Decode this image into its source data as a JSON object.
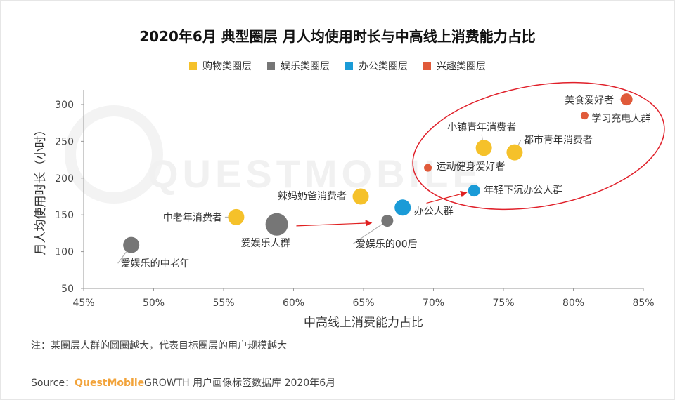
{
  "title": "2020年6月 典型圈层 月人均使用时长与中高线上消费能力占比",
  "legend": [
    {
      "label": "购物类圈层",
      "color": "#f5c12a"
    },
    {
      "label": "娱乐类圈层",
      "color": "#767676"
    },
    {
      "label": "办公类圈层",
      "color": "#1a9bd7"
    },
    {
      "label": "兴趣类圈层",
      "color": "#e05a3a"
    }
  ],
  "watermark": "QUESTMOBILE",
  "chart_data": {
    "type": "scatter",
    "title": "2020年6月 典型圈层 月人均使用时长与中高线上消费能力占比",
    "xlabel": "中高线上消费能力占比",
    "ylabel": "月人均使用时长（小时）",
    "xlim": [
      45,
      85
    ],
    "ylim": [
      50,
      320
    ],
    "x_ticks": [
      45,
      50,
      55,
      60,
      65,
      70,
      75,
      80,
      85
    ],
    "x_tick_labels": [
      "45%",
      "50%",
      "55%",
      "60%",
      "65%",
      "70%",
      "75%",
      "80%",
      "85%"
    ],
    "y_ticks": [
      50,
      100,
      150,
      200,
      250,
      300
    ],
    "y_tick_labels": [
      "50",
      "100",
      "150",
      "200",
      "250",
      "300"
    ],
    "grid": false,
    "legend_position": "top-center",
    "series": [
      {
        "name": "购物类圈层",
        "color": "#f5c12a",
        "points": [
          {
            "label": "中老年消费者",
            "x": 55.9,
            "y": 147,
            "size": "medium"
          },
          {
            "label": "辣妈奶爸消费者",
            "x": 64.8,
            "y": 175,
            "size": "medium"
          },
          {
            "label": "小镇青年消费者",
            "x": 73.6,
            "y": 241,
            "size": "medium"
          },
          {
            "label": "都市青年消费者",
            "x": 75.8,
            "y": 235,
            "size": "medium"
          }
        ]
      },
      {
        "name": "娱乐类圈层",
        "color": "#767676",
        "points": [
          {
            "label": "爱娱乐的中老年",
            "x": 48.4,
            "y": 109,
            "size": "medium"
          },
          {
            "label": "爱娱乐人群",
            "x": 58.8,
            "y": 137,
            "size": "large"
          },
          {
            "label": "爱娱乐的00后",
            "x": 66.7,
            "y": 142,
            "size": "small"
          }
        ]
      },
      {
        "name": "办公类圈层",
        "color": "#1a9bd7",
        "points": [
          {
            "label": "办公人群",
            "x": 67.8,
            "y": 160,
            "size": "medium"
          },
          {
            "label": "年轻下沉办公人群",
            "x": 72.9,
            "y": 183,
            "size": "small"
          }
        ]
      },
      {
        "name": "兴趣类圈层",
        "color": "#e05a3a",
        "points": [
          {
            "label": "运动健身爱好者",
            "x": 69.6,
            "y": 214,
            "size": "tiny"
          },
          {
            "label": "美食爱好者",
            "x": 83.8,
            "y": 307,
            "size": "small"
          },
          {
            "label": "学习充电人群",
            "x": 80.8,
            "y": 285,
            "size": "tiny"
          }
        ]
      }
    ],
    "arrows": [
      {
        "from": [
          60.2,
          135
        ],
        "to": [
          65.5,
          139
        ]
      },
      {
        "from": [
          69.5,
          166
        ],
        "to": [
          72.3,
          180
        ]
      }
    ]
  },
  "note": "注：某圈层人群的圆圈越大，代表目标圈层的用户规模越大",
  "source": {
    "prefix": "Source：",
    "brand": "QuestMobile",
    "rest": " GROWTH 用户画像标签数据库 2020年6月"
  }
}
